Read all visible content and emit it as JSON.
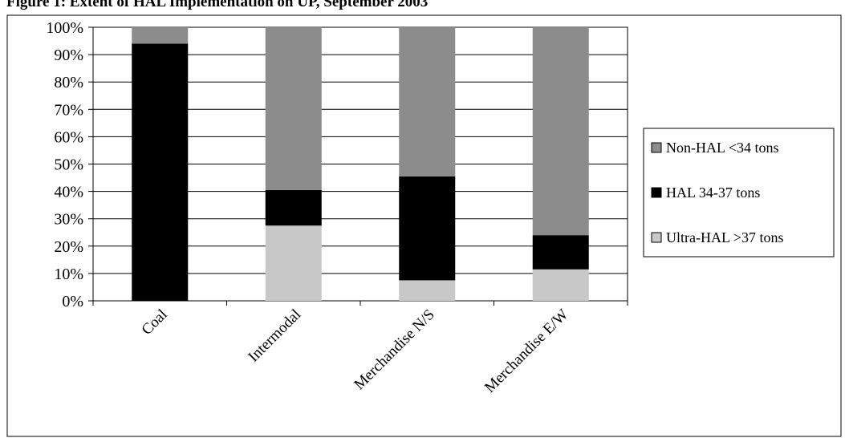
{
  "figure_title": "Figure 1:  Extent of HAL Implementation on UP, September 2003",
  "chart_data": {
    "type": "bar",
    "stacked": true,
    "title": "",
    "xlabel": "",
    "ylabel": "",
    "ylim": [
      0,
      100
    ],
    "y_ticks": [
      "0%",
      "10%",
      "20%",
      "30%",
      "40%",
      "50%",
      "60%",
      "70%",
      "80%",
      "90%",
      "100%"
    ],
    "grid": true,
    "legend_position": "right",
    "categories": [
      "Coal",
      "Intermodal",
      "Merchandise N/S",
      "Merchandise E/W"
    ],
    "series": [
      {
        "name": "Ultra-HAL >37 tons",
        "color": "#c8c8c8",
        "values": [
          0,
          27.5,
          7.5,
          11.5
        ]
      },
      {
        "name": "HAL 34-37 tons",
        "color": "#000000",
        "values": [
          94,
          13,
          38,
          12.5
        ]
      },
      {
        "name": "Non-HAL <34 tons",
        "color": "#8c8c8c",
        "values": [
          6,
          59.5,
          54.5,
          76
        ]
      }
    ],
    "legend_order": [
      "Non-HAL <34 tons",
      "HAL 34-37 tons",
      "Ultra-HAL >37 tons"
    ]
  }
}
